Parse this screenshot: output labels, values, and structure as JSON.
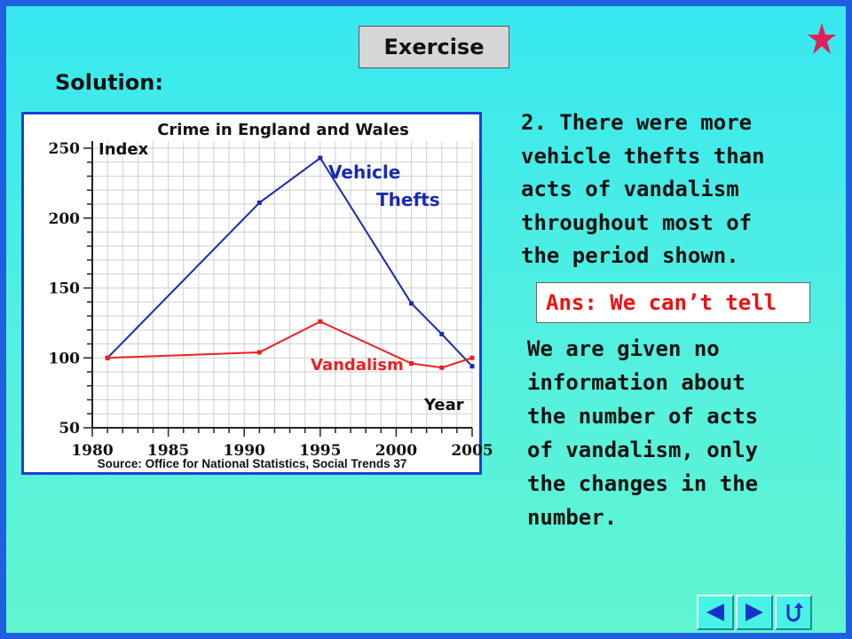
{
  "header": {
    "exercise_label": "Exercise",
    "solution_label": "Solution:"
  },
  "colors": {
    "vehicle": "#1a2bb0",
    "vandalism": "#ee2020",
    "accent_star": "#e0205a",
    "frame": "#1f5fe0"
  },
  "chart_data": {
    "type": "line",
    "title": "Crime in England and Wales",
    "ylabel": "Index",
    "xlabel": "Year",
    "source": "Source: Office for National Statistics, Social Trends 37",
    "xlim": [
      1980,
      2005
    ],
    "ylim": [
      50,
      250
    ],
    "x_ticks": [
      1980,
      1985,
      1990,
      1995,
      2000,
      2005
    ],
    "y_ticks": [
      50,
      100,
      150,
      200,
      250
    ],
    "grid": true,
    "series": [
      {
        "name": "Vehicle Thefts",
        "label_lines": [
          "Vehicle",
          "Thefts"
        ],
        "color": "#1a2bb0",
        "x": [
          1981,
          1991,
          1995,
          2001,
          2003,
          2005
        ],
        "y": [
          100,
          211,
          243,
          139,
          117,
          94
        ]
      },
      {
        "name": "Vandalism",
        "label_lines": [
          "Vandalism"
        ],
        "color": "#ee2020",
        "x": [
          1981,
          1991,
          1995,
          2001,
          2003,
          2005
        ],
        "y": [
          100,
          104,
          126,
          96,
          93,
          100
        ]
      }
    ]
  },
  "statement": {
    "text": "2.  There were more\nvehicle thefts than\nacts of vandalism\nthroughout most of\nthe period shown."
  },
  "answer": {
    "text": "Ans: We can’t tell"
  },
  "explanation": {
    "text": "We are given no\ninformation about\nthe number of acts\nof vandalism, only\nthe changes in the\nnumber."
  },
  "nav": {
    "buttons": [
      "back-icon",
      "forward-icon",
      "return-icon"
    ]
  }
}
